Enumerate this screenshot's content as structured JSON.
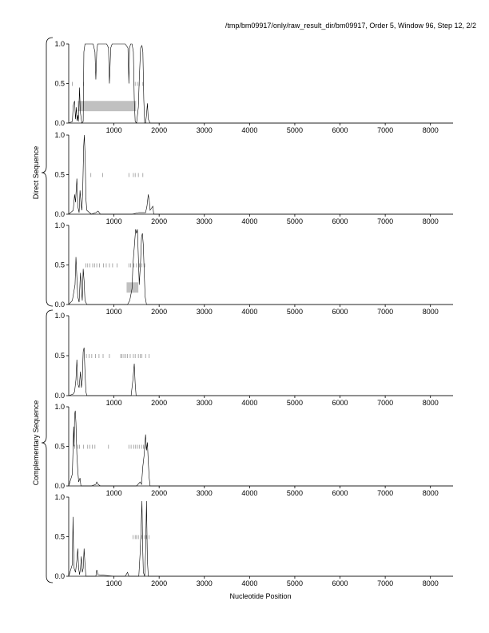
{
  "header": {
    "title": "/tmp/bm09917/only/raw_result_dir/bm09917, Order 5, Window 96, Step 12, 2/2"
  },
  "groups": [
    {
      "label": "Direct Sequence",
      "panels": [
        0,
        1,
        2
      ]
    },
    {
      "label": "Complementary Sequence",
      "panels": [
        3,
        4,
        5
      ]
    }
  ],
  "chart_data": {
    "type": "line",
    "xlabel": "Nucleotide Position",
    "xlim": [
      0,
      8500
    ],
    "xticks": [
      1000,
      2000,
      3000,
      4000,
      5000,
      6000,
      7000,
      8000
    ],
    "ylim": [
      0,
      1
    ],
    "yticks": [
      0.0,
      0.5,
      1.0
    ],
    "ytick_labels": [
      "0.0",
      "0.5",
      "1.0"
    ],
    "panels": [
      {
        "series": [
          [
            0,
            0
          ],
          [
            80,
            0.02
          ],
          [
            100,
            0.22
          ],
          [
            130,
            0.28
          ],
          [
            150,
            0.05
          ],
          [
            170,
            0.2
          ],
          [
            185,
            0.03
          ],
          [
            200,
            0.1
          ],
          [
            215,
            0.02
          ],
          [
            240,
            0.45
          ],
          [
            255,
            0.15
          ],
          [
            290,
            0.0
          ],
          [
            320,
            0.02
          ],
          [
            335,
            0.9
          ],
          [
            360,
            1.0
          ],
          [
            420,
            1.0
          ],
          [
            500,
            1.0
          ],
          [
            540,
            1.0
          ],
          [
            580,
            0.9
          ],
          [
            600,
            0.55
          ],
          [
            620,
            0.9
          ],
          [
            640,
            1.0
          ],
          [
            700,
            1.0
          ],
          [
            800,
            1.0
          ],
          [
            840,
            1.0
          ],
          [
            880,
            0.95
          ],
          [
            900,
            0.5
          ],
          [
            930,
            0.95
          ],
          [
            960,
            1.0
          ],
          [
            1050,
            1.0
          ],
          [
            1150,
            1.0
          ],
          [
            1250,
            1.0
          ],
          [
            1310,
            0.95
          ],
          [
            1330,
            0.5
          ],
          [
            1345,
            0.95
          ],
          [
            1370,
            1.0
          ],
          [
            1400,
            1.0
          ],
          [
            1430,
            0.9
          ],
          [
            1450,
            0.3
          ],
          [
            1470,
            0.02
          ],
          [
            1500,
            0.0
          ],
          [
            1540,
            0.2
          ],
          [
            1560,
            0.55
          ],
          [
            1590,
            0.95
          ],
          [
            1620,
            0.98
          ],
          [
            1640,
            0.9
          ],
          [
            1660,
            0.3
          ],
          [
            1680,
            0.0
          ],
          [
            1700,
            0.0
          ],
          [
            1720,
            0.1
          ],
          [
            1740,
            0.25
          ],
          [
            1760,
            0.05
          ],
          [
            1800,
            0.0
          ],
          [
            8500,
            0
          ]
        ],
        "ticks": [
          80,
          330,
          1470,
          1520,
          1560,
          1640
        ],
        "boxes": [
          [
            200,
            1490,
            0.15,
            0.28
          ]
        ]
      },
      {
        "series": [
          [
            0,
            0
          ],
          [
            100,
            0.05
          ],
          [
            130,
            0.25
          ],
          [
            150,
            0.15
          ],
          [
            180,
            0.45
          ],
          [
            200,
            0.1
          ],
          [
            230,
            0.02
          ],
          [
            250,
            0.3
          ],
          [
            270,
            0.15
          ],
          [
            290,
            0.05
          ],
          [
            310,
            0.3
          ],
          [
            330,
            0.85
          ],
          [
            345,
            1.0
          ],
          [
            365,
            0.7
          ],
          [
            380,
            0.2
          ],
          [
            400,
            0.05
          ],
          [
            500,
            0.0
          ],
          [
            600,
            0.02
          ],
          [
            650,
            0.04
          ],
          [
            700,
            0.0
          ],
          [
            1200,
            0.0
          ],
          [
            1400,
            0.0
          ],
          [
            1550,
            0.02
          ],
          [
            1700,
            0.02
          ],
          [
            1730,
            0.1
          ],
          [
            1760,
            0.25
          ],
          [
            1785,
            0.15
          ],
          [
            1800,
            0.05
          ],
          [
            1860,
            0.1
          ],
          [
            1880,
            0.0
          ],
          [
            8500,
            0
          ]
        ],
        "ticks": [
          490,
          750,
          1330,
          1430,
          1470,
          1540,
          1640
        ],
        "boxes": []
      },
      {
        "series": [
          [
            0,
            0
          ],
          [
            80,
            0.05
          ],
          [
            110,
            0.15
          ],
          [
            140,
            0.25
          ],
          [
            160,
            0.6
          ],
          [
            180,
            0.35
          ],
          [
            200,
            0.1
          ],
          [
            230,
            0.03
          ],
          [
            260,
            0.4
          ],
          [
            280,
            0.2
          ],
          [
            300,
            0.05
          ],
          [
            320,
            0.45
          ],
          [
            340,
            0.3
          ],
          [
            360,
            0.05
          ],
          [
            400,
            0.0
          ],
          [
            900,
            0.0
          ],
          [
            1300,
            0.0
          ],
          [
            1350,
            0.05
          ],
          [
            1400,
            0.2
          ],
          [
            1420,
            0.5
          ],
          [
            1440,
            0.65
          ],
          [
            1460,
            0.8
          ],
          [
            1480,
            0.95
          ],
          [
            1500,
            0.9
          ],
          [
            1520,
            0.95
          ],
          [
            1540,
            0.6
          ],
          [
            1560,
            0.25
          ],
          [
            1590,
            0.55
          ],
          [
            1610,
            0.85
          ],
          [
            1630,
            0.9
          ],
          [
            1650,
            0.75
          ],
          [
            1670,
            0.4
          ],
          [
            1690,
            0.1
          ],
          [
            1720,
            0.0
          ],
          [
            8500,
            0
          ]
        ],
        "ticks": [
          380,
          420,
          470,
          530,
          570,
          620,
          680,
          770,
          830,
          900,
          970,
          1070,
          1330,
          1370,
          1440,
          1500,
          1560,
          1620,
          1680
        ],
        "boxes": [
          [
            1280,
            1540,
            0.15,
            0.28
          ]
        ]
      },
      {
        "series": [
          [
            0,
            0
          ],
          [
            100,
            0.02
          ],
          [
            130,
            0.05
          ],
          [
            160,
            0.2
          ],
          [
            180,
            0.45
          ],
          [
            200,
            0.15
          ],
          [
            230,
            0.1
          ],
          [
            260,
            0.3
          ],
          [
            280,
            0.1
          ],
          [
            300,
            0.2
          ],
          [
            320,
            0.55
          ],
          [
            340,
            0.6
          ],
          [
            360,
            0.3
          ],
          [
            380,
            0.05
          ],
          [
            400,
            0.0
          ],
          [
            600,
            0.0
          ],
          [
            1000,
            0.0
          ],
          [
            1380,
            0.0
          ],
          [
            1420,
            0.2
          ],
          [
            1450,
            0.4
          ],
          [
            1470,
            0.15
          ],
          [
            1490,
            0.0
          ],
          [
            8500,
            0
          ]
        ],
        "ticks": [
          390,
          450,
          510,
          590,
          670,
          760,
          900,
          1150,
          1180,
          1220,
          1260,
          1300,
          1360,
          1430,
          1470,
          1540,
          1580,
          1620,
          1700,
          1780
        ],
        "boxes": []
      },
      {
        "series": [
          [
            0,
            0
          ],
          [
            80,
            0.15
          ],
          [
            90,
            0.35
          ],
          [
            110,
            0.75
          ],
          [
            120,
            0.5
          ],
          [
            130,
            0.9
          ],
          [
            145,
            0.95
          ],
          [
            160,
            0.8
          ],
          [
            180,
            0.4
          ],
          [
            200,
            0.2
          ],
          [
            220,
            0.05
          ],
          [
            250,
            0.1
          ],
          [
            270,
            0.0
          ],
          [
            500,
            0.0
          ],
          [
            600,
            0.02
          ],
          [
            620,
            0.05
          ],
          [
            650,
            0.02
          ],
          [
            700,
            0.0
          ],
          [
            1500,
            0.0
          ],
          [
            1580,
            0.05
          ],
          [
            1610,
            0.02
          ],
          [
            1640,
            0.25
          ],
          [
            1670,
            0.4
          ],
          [
            1700,
            0.65
          ],
          [
            1720,
            0.45
          ],
          [
            1740,
            0.55
          ],
          [
            1760,
            0.3
          ],
          [
            1780,
            0.1
          ],
          [
            1800,
            0.0
          ],
          [
            8500,
            0
          ]
        ],
        "ticks": [
          130,
          200,
          240,
          330,
          420,
          470,
          520,
          580,
          880,
          1330,
          1380,
          1440,
          1480,
          1520,
          1560,
          1610,
          1650,
          1690
        ],
        "boxes": []
      },
      {
        "series": [
          [
            0,
            0
          ],
          [
            80,
            0.15
          ],
          [
            95,
            0.75
          ],
          [
            105,
            0.4
          ],
          [
            120,
            0.1
          ],
          [
            150,
            0.05
          ],
          [
            180,
            0.2
          ],
          [
            200,
            0.35
          ],
          [
            220,
            0.1
          ],
          [
            240,
            0.02
          ],
          [
            260,
            0.1
          ],
          [
            280,
            0.25
          ],
          [
            300,
            0.05
          ],
          [
            320,
            0.1
          ],
          [
            340,
            0.35
          ],
          [
            360,
            0.15
          ],
          [
            380,
            0.0
          ],
          [
            600,
            0.0
          ],
          [
            620,
            0.08
          ],
          [
            650,
            0.02
          ],
          [
            1000,
            0.0
          ],
          [
            1250,
            0.0
          ],
          [
            1300,
            0.05
          ],
          [
            1330,
            0.0
          ],
          [
            1550,
            0.0
          ],
          [
            1580,
            0.3
          ],
          [
            1600,
            0.6
          ],
          [
            1620,
            0.95
          ],
          [
            1635,
            0.4
          ],
          [
            1650,
            0.05
          ],
          [
            1680,
            0.0
          ],
          [
            1700,
            0.3
          ],
          [
            1720,
            0.95
          ],
          [
            1740,
            0.2
          ],
          [
            1760,
            0.0
          ],
          [
            8500,
            0
          ]
        ],
        "ticks": [
          1420,
          1470,
          1500,
          1540,
          1620,
          1680,
          1720,
          1780
        ],
        "boxes": []
      }
    ]
  }
}
